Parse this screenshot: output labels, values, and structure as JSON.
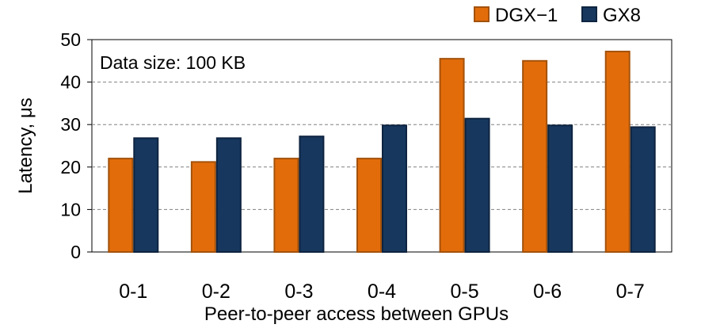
{
  "chart_data": {
    "type": "bar",
    "categories": [
      "0-1",
      "0-2",
      "0-3",
      "0-4",
      "0-5",
      "0-6",
      "0-7"
    ],
    "series": [
      {
        "name": "DGX−1",
        "values": [
          22,
          21.2,
          22,
          22,
          45.5,
          45,
          47.2
        ],
        "color": "#e36c0a",
        "stroke": "#a3520c"
      },
      {
        "name": "GX8",
        "values": [
          26.8,
          26.8,
          27.2,
          29.8,
          31.4,
          29.8,
          29.4
        ],
        "color": "#17375e",
        "stroke": "#0e2440"
      }
    ],
    "title": "",
    "xlabel": "Peer-to-peer access between GPUs",
    "ylabel": "Latency, μs",
    "ylim": [
      0,
      50
    ],
    "yticks": [
      0,
      10,
      20,
      30,
      40,
      50
    ],
    "grid": "horizontal dashed",
    "legend": "top-right",
    "annotation": "Data size: 100 KB"
  }
}
